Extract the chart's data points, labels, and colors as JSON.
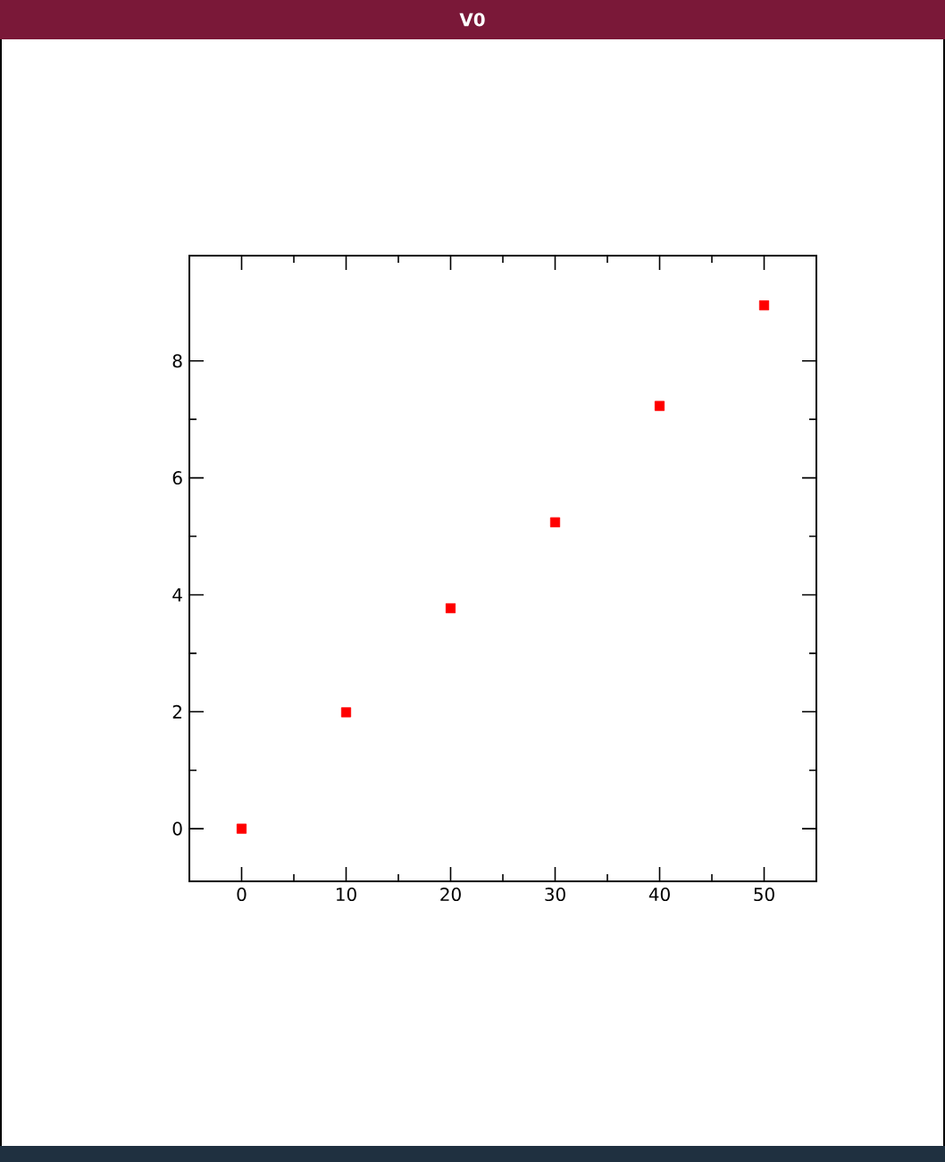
{
  "chart_data": {
    "type": "scatter",
    "title": "V0",
    "x": [
      0,
      10,
      20,
      30,
      40,
      50
    ],
    "series": [
      {
        "color": "#ff0000",
        "values": [
          0,
          1.99,
          3.77,
          5.24,
          7.23,
          8.95
        ]
      }
    ],
    "xlim": [
      -5,
      55
    ],
    "ylim": [
      -0.9,
      9.8
    ],
    "xticks": [
      0,
      10,
      20,
      30,
      40,
      50
    ],
    "yticks": [
      0,
      2,
      4,
      6,
      8
    ],
    "marker": "square",
    "grid": false,
    "legend": false
  }
}
